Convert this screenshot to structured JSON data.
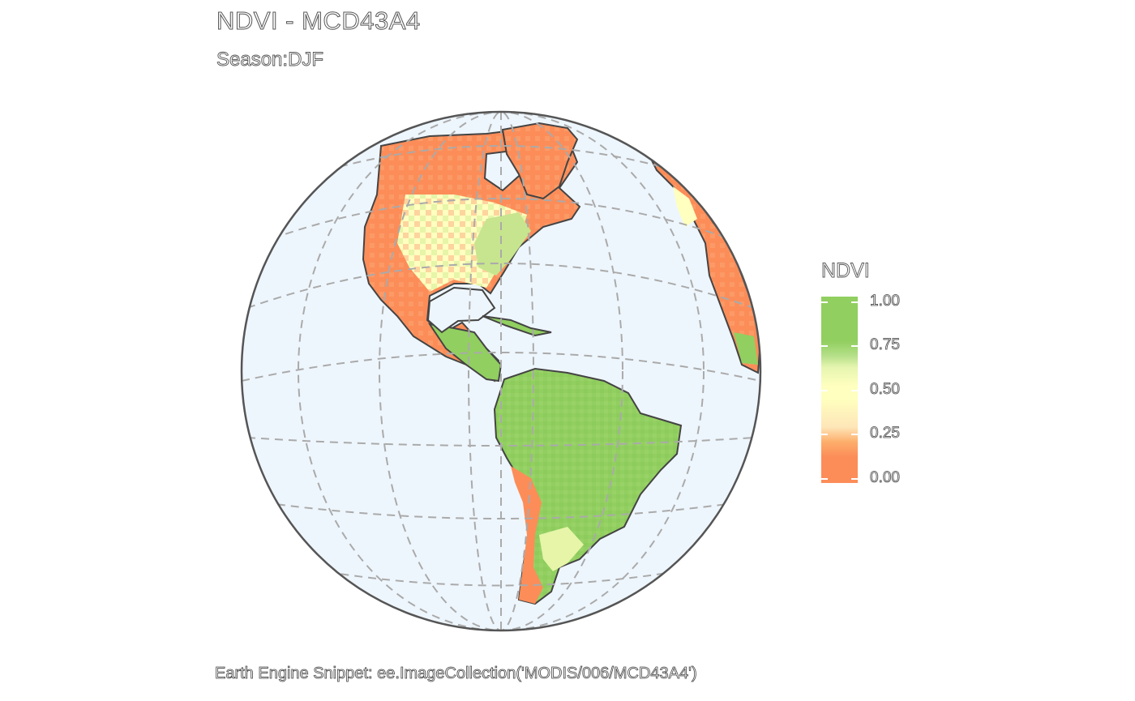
{
  "header": {
    "title": "NDVI - MCD43A4",
    "subtitle": "Season:DJF"
  },
  "caption": "Earth Engine Snippet: ee.ImageCollection('MODIS/006/MCD43A4')",
  "legend": {
    "title": "NDVI",
    "ticks": [
      "1.00",
      "0.75",
      "0.50",
      "0.25",
      "0.00"
    ],
    "colors": {
      "low": "#fc8d59",
      "mid": "#ffffbf",
      "high": "#91cf60"
    }
  },
  "map": {
    "projection": "orthographic",
    "graticule": "dashed",
    "ocean_color": "#eef6fd",
    "coastline_color": "#444444"
  }
}
